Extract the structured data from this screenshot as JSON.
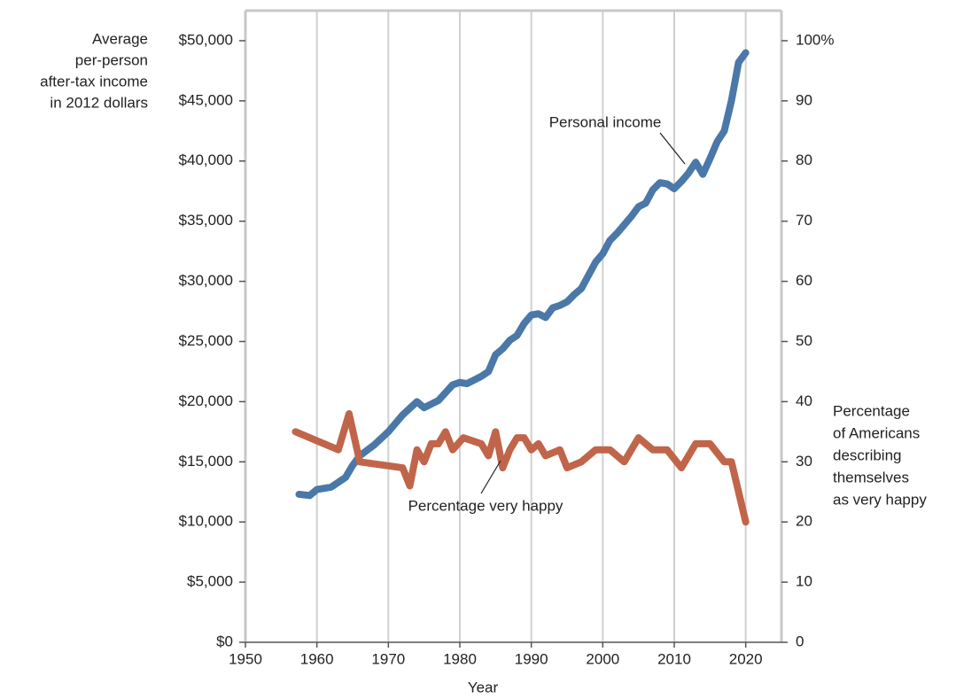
{
  "chart_data": {
    "type": "line",
    "y_label": [
      "Average",
      "per-person",
      "after-tax income",
      "in 2012 dollars"
    ],
    "y2_label": [
      "Percentage",
      "of Americans",
      "describing",
      "themselves",
      "as very happy"
    ],
    "x_label": "Year",
    "xlim": [
      1950,
      2025
    ],
    "xticks": [
      1950,
      1960,
      1970,
      1980,
      1990,
      2000,
      2010,
      2020
    ],
    "grid": true,
    "ylim": [
      0,
      52500
    ],
    "yticks": [
      {
        "value": 0,
        "label": "$0"
      },
      {
        "value": 5000,
        "label": "$5,000"
      },
      {
        "value": 10000,
        "label": "$10,000"
      },
      {
        "value": 15000,
        "label": "$15,000"
      },
      {
        "value": 20000,
        "label": "$20,000"
      },
      {
        "value": 25000,
        "label": "$25,000"
      },
      {
        "value": 30000,
        "label": "$30,000"
      },
      {
        "value": 35000,
        "label": "$35,000"
      },
      {
        "value": 40000,
        "label": "$40,000"
      },
      {
        "value": 45000,
        "label": "$45,000"
      },
      {
        "value": 50000,
        "label": "$50,000"
      }
    ],
    "y2lim": [
      0,
      105
    ],
    "y2ticks": [
      0,
      10,
      20,
      30,
      40,
      50,
      60,
      70,
      80,
      90,
      {
        "value": 100,
        "label": "100%"
      }
    ],
    "series": [
      {
        "name": "Personal income",
        "color": "#4a78a8",
        "x": [
          1957.5,
          1959,
          1960,
          1962,
          1964,
          1965,
          1966,
          1968,
          1970,
          1972,
          1974,
          1975,
          1977,
          1979,
          1980,
          1981,
          1983,
          1984,
          1985,
          1986,
          1987,
          1988,
          1989,
          1990,
          1991,
          1992,
          1993,
          1994,
          1995,
          1996,
          1997,
          1998,
          1999,
          2000,
          2001,
          2002,
          2003,
          2004,
          2005,
          2006,
          2007,
          2008,
          2009,
          2010,
          2011,
          2012,
          2013,
          2014,
          2015,
          2016,
          2017,
          2018,
          2019,
          2020
        ],
        "values": [
          12300,
          12200,
          12700,
          12900,
          13700,
          14700,
          15500,
          16400,
          17500,
          18900,
          20000,
          19500,
          20100,
          21400,
          21600,
          21500,
          22100,
          22500,
          23900,
          24400,
          25100,
          25500,
          26500,
          27200,
          27300,
          27000,
          27800,
          28000,
          28300,
          28900,
          29400,
          30500,
          31600,
          32300,
          33400,
          34000,
          34700,
          35400,
          36200,
          36500,
          37600,
          38200,
          38100,
          37700,
          38300,
          39000,
          39900,
          38900,
          40200,
          41600,
          42500,
          45000,
          48200,
          49000
        ]
      },
      {
        "name": "Percentage very happy",
        "color": "#c0654a",
        "axis": "y2",
        "x": [
          1957,
          1963,
          1964.5,
          1966,
          1972,
          1973,
          1974,
          1975,
          1976,
          1977,
          1978,
          1979,
          1980.5,
          1983,
          1984,
          1985,
          1986,
          1987,
          1988,
          1989,
          1990,
          1991,
          1992,
          1994,
          1995,
          1997,
          1999,
          2001,
          2003,
          2005,
          2007,
          2009,
          2011,
          2013,
          2015,
          2017,
          2018,
          2020
        ],
        "values": [
          35,
          32,
          38,
          30,
          29,
          26,
          32,
          30,
          33,
          33,
          35,
          32,
          34,
          33,
          31,
          35,
          29,
          32,
          34,
          34,
          32,
          33,
          31,
          32,
          29,
          30,
          32,
          32,
          30,
          34,
          32,
          32,
          29,
          33,
          33,
          30,
          30,
          20
        ]
      }
    ]
  }
}
